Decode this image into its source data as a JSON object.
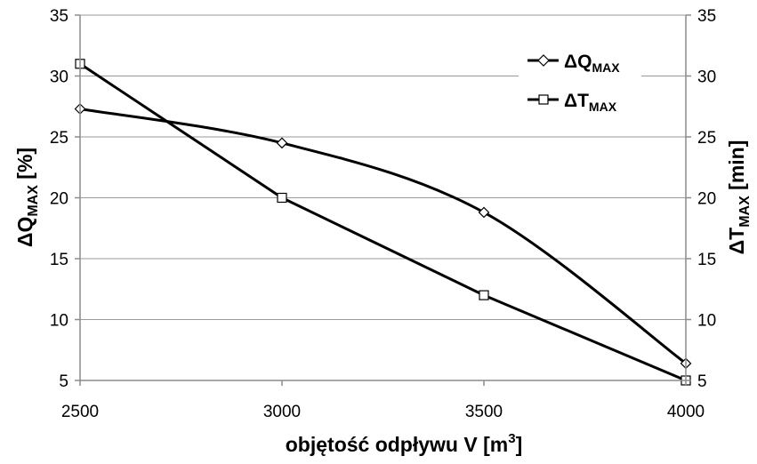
{
  "chart_data": {
    "type": "line",
    "x": [
      2500,
      3000,
      3500,
      4000
    ],
    "xlim": [
      2500,
      4000
    ],
    "xticks": [
      "2500",
      "3000",
      "3500",
      "4000"
    ],
    "xlabel": {
      "main": "objętość odpływu V [m",
      "sup": "3",
      "end": "]"
    },
    "ylim": [
      5,
      35
    ],
    "yticks": [
      "5",
      "10",
      "15",
      "20",
      "25",
      "30",
      "35"
    ],
    "ylabel_left": {
      "main": "ΔQ",
      "sub": "MAX",
      "end": " [%]"
    },
    "ylabel_right": {
      "main": "ΔT",
      "sub": "MAX",
      "end": " [min]"
    },
    "grid": true,
    "legend_position": "top-right",
    "series": [
      {
        "name": "ΔQ",
        "name_sub": "MAX",
        "marker": "diamond",
        "smooth": true,
        "axis": "left",
        "values": [
          27.3,
          24.5,
          18.8,
          6.4
        ]
      },
      {
        "name": "ΔT",
        "name_sub": "MAX",
        "marker": "square",
        "smooth": false,
        "axis": "right",
        "values": [
          31.0,
          20.0,
          12.0,
          5.0
        ]
      }
    ]
  }
}
